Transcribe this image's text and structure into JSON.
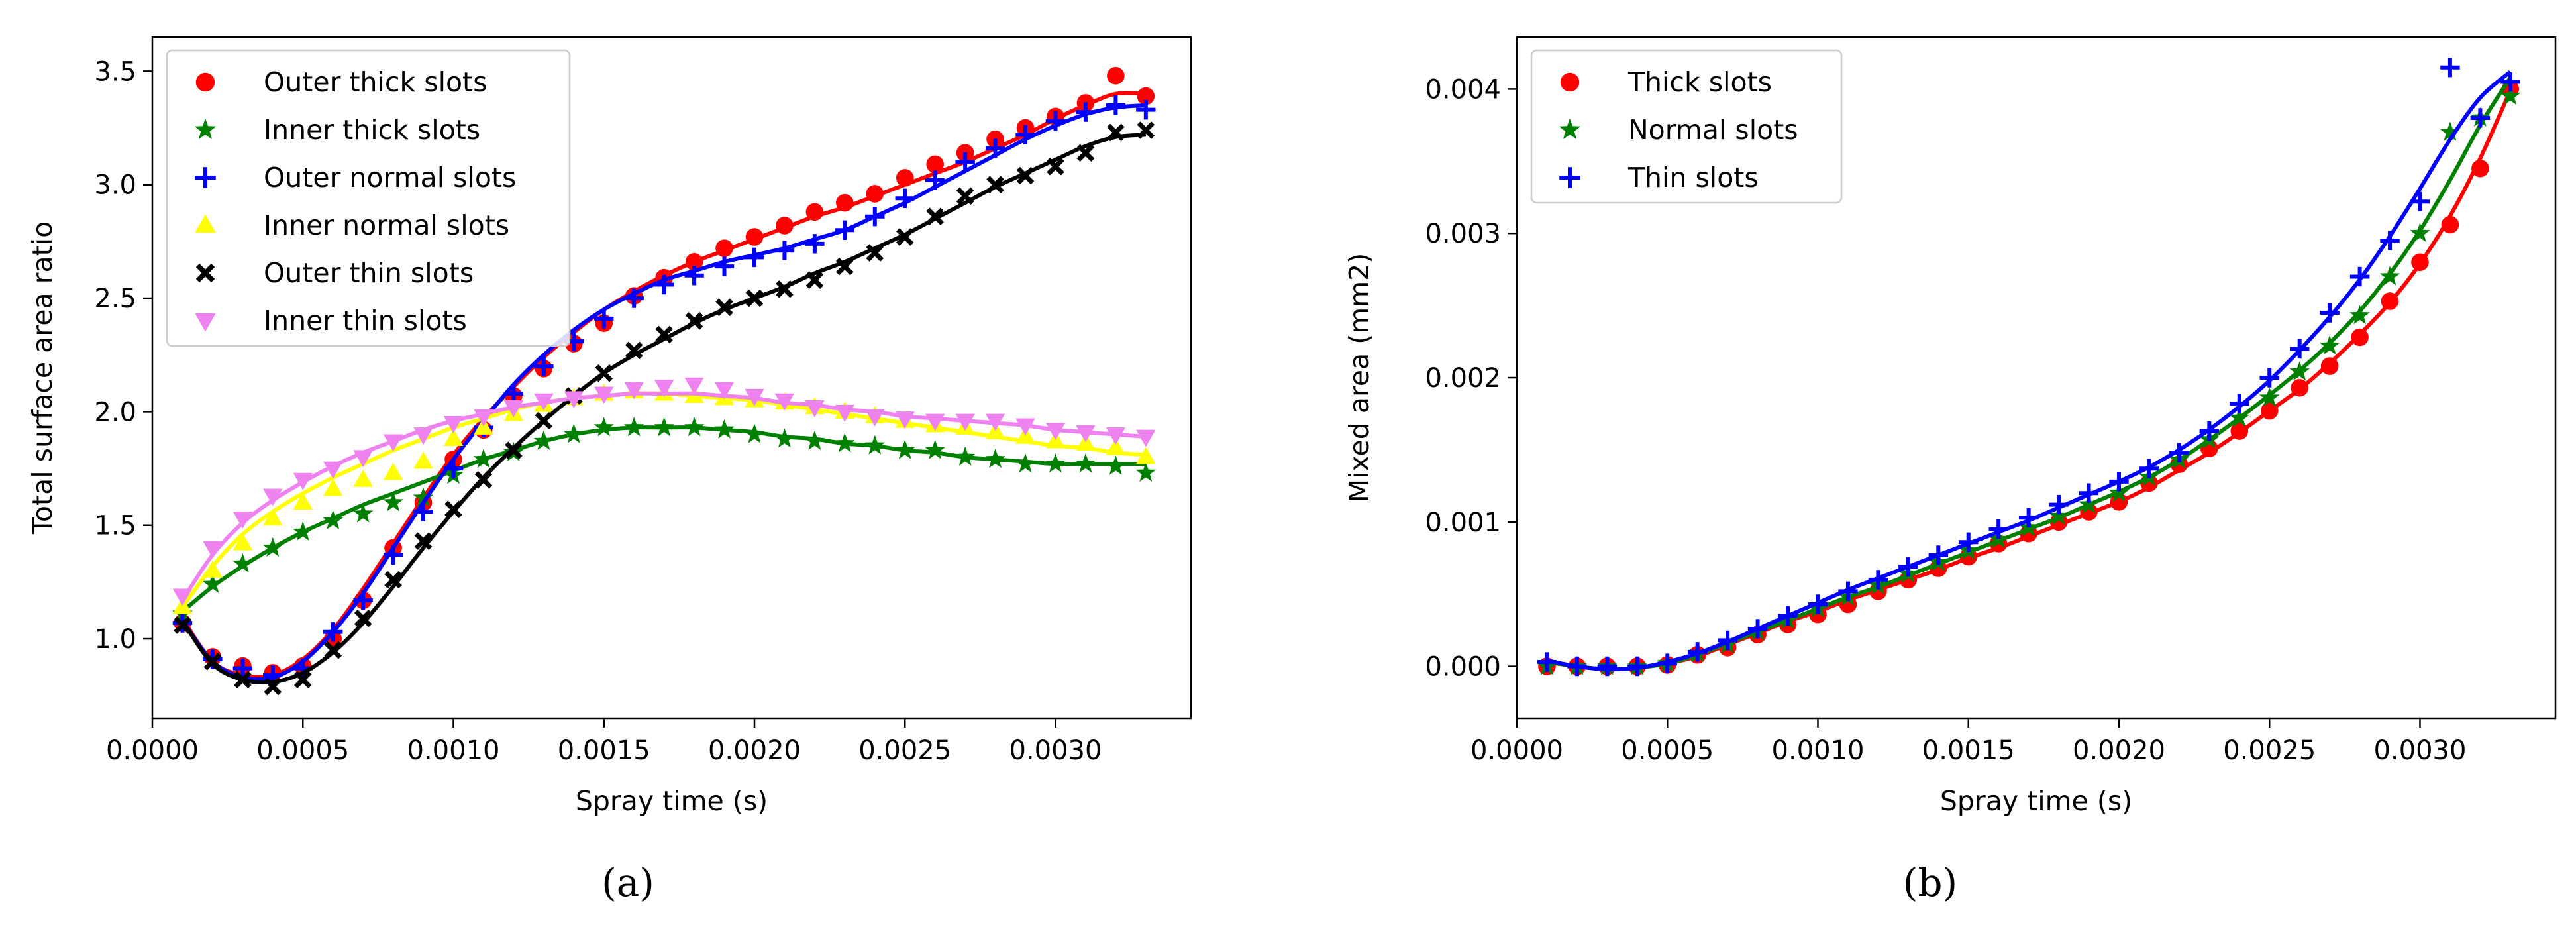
{
  "chart_data": [
    {
      "type": "scatter",
      "caption": "(a)",
      "xlabel": "Spray time (s)",
      "ylabel": "Total surface area ratio",
      "xlim": [
        0.0,
        0.00345
      ],
      "ylim": [
        0.65,
        3.65
      ],
      "xticks": [
        0.0,
        0.0005,
        0.001,
        0.0015,
        0.002,
        0.0025,
        0.003
      ],
      "xtick_labels": [
        "0.0000",
        "0.0005",
        "0.0010",
        "0.0015",
        "0.0020",
        "0.0025",
        "0.0030"
      ],
      "yticks": [
        1.0,
        1.5,
        2.0,
        2.5,
        3.0,
        3.5
      ],
      "ytick_labels": [
        "1.0",
        "1.5",
        "2.0",
        "2.5",
        "3.0",
        "3.5"
      ],
      "grid": false,
      "legend_position": "top-left",
      "x": [
        0.0001,
        0.0002,
        0.0003,
        0.0004,
        0.0005,
        0.0006,
        0.0007,
        0.0008,
        0.0009,
        0.001,
        0.0011,
        0.0012,
        0.0013,
        0.0014,
        0.0015,
        0.0016,
        0.0017,
        0.0018,
        0.0019,
        0.002,
        0.0021,
        0.0022,
        0.0023,
        0.0024,
        0.0025,
        0.0026,
        0.0027,
        0.0028,
        0.0029,
        0.003,
        0.0031,
        0.0032,
        0.0033
      ],
      "series": [
        {
          "name": "Outer thick slots",
          "color": "#ff0000",
          "marker": "circle",
          "values": [
            1.07,
            0.92,
            0.88,
            0.85,
            0.88,
            1.0,
            1.17,
            1.4,
            1.6,
            1.79,
            1.92,
            2.07,
            2.19,
            2.3,
            2.39,
            2.51,
            2.59,
            2.66,
            2.72,
            2.77,
            2.82,
            2.88,
            2.92,
            2.96,
            3.03,
            3.09,
            3.14,
            3.2,
            3.25,
            3.3,
            3.36,
            3.48,
            3.39
          ],
          "fit": [
            1.09,
            0.9,
            0.84,
            0.84,
            0.91,
            1.04,
            1.22,
            1.42,
            1.62,
            1.81,
            1.97,
            2.11,
            2.24,
            2.35,
            2.45,
            2.53,
            2.6,
            2.66,
            2.71,
            2.76,
            2.81,
            2.86,
            2.9,
            2.95,
            3.0,
            3.05,
            3.1,
            3.16,
            3.22,
            3.29,
            3.35,
            3.4,
            3.4
          ]
        },
        {
          "name": "Inner thick slots",
          "color": "#008000",
          "marker": "star",
          "values": [
            1.11,
            1.24,
            1.33,
            1.4,
            1.47,
            1.52,
            1.55,
            1.6,
            1.62,
            1.72,
            1.79,
            1.82,
            1.87,
            1.9,
            1.93,
            1.93,
            1.93,
            1.93,
            1.92,
            1.9,
            1.88,
            1.87,
            1.86,
            1.85,
            1.83,
            1.83,
            1.8,
            1.79,
            1.77,
            1.77,
            1.77,
            1.76,
            1.73
          ],
          "fit": [
            1.12,
            1.23,
            1.32,
            1.4,
            1.47,
            1.53,
            1.59,
            1.64,
            1.69,
            1.74,
            1.79,
            1.83,
            1.87,
            1.9,
            1.92,
            1.93,
            1.93,
            1.93,
            1.92,
            1.91,
            1.89,
            1.88,
            1.86,
            1.85,
            1.83,
            1.82,
            1.8,
            1.79,
            1.78,
            1.77,
            1.77,
            1.77,
            1.77
          ]
        },
        {
          "name": "Outer normal slots",
          "color": "#0000ff",
          "marker": "plus",
          "values": [
            1.07,
            0.91,
            0.87,
            0.84,
            0.87,
            1.03,
            1.17,
            1.37,
            1.56,
            1.75,
            1.93,
            2.08,
            2.2,
            2.31,
            2.41,
            2.5,
            2.56,
            2.6,
            2.64,
            2.68,
            2.71,
            2.74,
            2.8,
            2.86,
            2.94,
            3.02,
            3.1,
            3.16,
            3.22,
            3.28,
            3.32,
            3.35,
            3.33
          ],
          "fit": [
            1.08,
            0.9,
            0.83,
            0.83,
            0.9,
            1.03,
            1.2,
            1.4,
            1.6,
            1.79,
            1.96,
            2.12,
            2.25,
            2.36,
            2.45,
            2.52,
            2.58,
            2.62,
            2.66,
            2.69,
            2.72,
            2.76,
            2.8,
            2.86,
            2.92,
            2.99,
            3.06,
            3.13,
            3.2,
            3.26,
            3.31,
            3.34,
            3.35
          ]
        },
        {
          "name": "Inner normal slots",
          "color": "#ffff00",
          "marker": "triangle-up",
          "values": [
            1.14,
            1.3,
            1.42,
            1.53,
            1.6,
            1.66,
            1.7,
            1.73,
            1.78,
            1.88,
            1.93,
            1.99,
            2.03,
            2.06,
            2.08,
            2.09,
            2.08,
            2.07,
            2.06,
            2.05,
            2.04,
            2.02,
            2.0,
            1.98,
            1.96,
            1.94,
            1.93,
            1.91,
            1.89,
            1.87,
            1.86,
            1.84,
            1.8
          ],
          "fit": [
            1.14,
            1.32,
            1.46,
            1.56,
            1.64,
            1.71,
            1.77,
            1.83,
            1.88,
            1.93,
            1.97,
            2.01,
            2.04,
            2.06,
            2.07,
            2.08,
            2.08,
            2.07,
            2.06,
            2.05,
            2.03,
            2.01,
            1.99,
            1.97,
            1.95,
            1.93,
            1.91,
            1.89,
            1.87,
            1.85,
            1.84,
            1.82,
            1.81
          ]
        },
        {
          "name": "Outer thin slots",
          "color": "#000000",
          "marker": "x-filled",
          "values": [
            1.06,
            0.9,
            0.82,
            0.79,
            0.82,
            0.95,
            1.09,
            1.26,
            1.43,
            1.57,
            1.7,
            1.83,
            1.96,
            2.07,
            2.17,
            2.27,
            2.34,
            2.4,
            2.46,
            2.5,
            2.54,
            2.58,
            2.64,
            2.7,
            2.77,
            2.86,
            2.95,
            3.0,
            3.04,
            3.08,
            3.14,
            3.23,
            3.24
          ],
          "fit": [
            1.08,
            0.89,
            0.82,
            0.81,
            0.85,
            0.94,
            1.07,
            1.23,
            1.4,
            1.56,
            1.71,
            1.84,
            1.96,
            2.07,
            2.17,
            2.25,
            2.32,
            2.39,
            2.45,
            2.5,
            2.55,
            2.61,
            2.66,
            2.72,
            2.78,
            2.85,
            2.92,
            2.99,
            3.05,
            3.11,
            3.17,
            3.21,
            3.22
          ]
        },
        {
          "name": "Inner thin slots",
          "color": "#ee82ee",
          "marker": "triangle-down",
          "values": [
            1.19,
            1.4,
            1.53,
            1.63,
            1.7,
            1.75,
            1.8,
            1.87,
            1.9,
            1.95,
            1.98,
            2.02,
            2.05,
            2.06,
            2.08,
            2.1,
            2.11,
            2.12,
            2.1,
            2.07,
            2.05,
            2.02,
            2.0,
            1.98,
            1.97,
            1.96,
            1.96,
            1.96,
            1.94,
            1.92,
            1.91,
            1.9,
            1.89
          ],
          "fit": [
            1.17,
            1.37,
            1.51,
            1.61,
            1.69,
            1.76,
            1.82,
            1.87,
            1.92,
            1.96,
            1.99,
            2.02,
            2.04,
            2.06,
            2.07,
            2.08,
            2.08,
            2.08,
            2.07,
            2.06,
            2.04,
            2.03,
            2.01,
            2.0,
            1.98,
            1.97,
            1.96,
            1.95,
            1.94,
            1.92,
            1.91,
            1.9,
            1.89
          ]
        }
      ]
    },
    {
      "type": "scatter",
      "caption": "(b)",
      "xlabel": "Spray time (s)",
      "ylabel": "Mixed area (mm2)",
      "xlim": [
        0.0,
        0.00345
      ],
      "ylim": [
        -0.00036,
        0.00436
      ],
      "xticks": [
        0.0,
        0.0005,
        0.001,
        0.0015,
        0.002,
        0.0025,
        0.003
      ],
      "xtick_labels": [
        "0.0000",
        "0.0005",
        "0.0010",
        "0.0015",
        "0.0020",
        "0.0025",
        "0.0030"
      ],
      "yticks": [
        0.0,
        0.001,
        0.002,
        0.003,
        0.004
      ],
      "ytick_labels": [
        "0.000",
        "0.001",
        "0.002",
        "0.003",
        "0.004"
      ],
      "grid": false,
      "legend_position": "top-left",
      "x": [
        0.0001,
        0.0002,
        0.0003,
        0.0004,
        0.0005,
        0.0006,
        0.0007,
        0.0008,
        0.0009,
        0.001,
        0.0011,
        0.0012,
        0.0013,
        0.0014,
        0.0015,
        0.0016,
        0.0017,
        0.0018,
        0.0019,
        0.002,
        0.0021,
        0.0022,
        0.0023,
        0.0024,
        0.0025,
        0.0026,
        0.0027,
        0.0028,
        0.0029,
        0.003,
        0.0031,
        0.0032,
        0.0033
      ],
      "series": [
        {
          "name": "Thick slots",
          "color": "#ff0000",
          "marker": "circle",
          "values": [
            0.0,
            0.0,
            0.0,
            0.0,
            1e-05,
            8e-05,
            0.00013,
            0.00022,
            0.00029,
            0.00036,
            0.00043,
            0.00052,
            0.0006,
            0.00068,
            0.00076,
            0.00085,
            0.00092,
            0.001,
            0.00107,
            0.00114,
            0.00127,
            0.0014,
            0.00151,
            0.00163,
            0.00177,
            0.00193,
            0.00208,
            0.00228,
            0.00253,
            0.0028,
            0.00306,
            0.00345,
            0.004
          ],
          "fit": [
            3e-05,
            0.0,
            -2e-05,
            -1e-05,
            2e-05,
            7e-05,
            0.00015,
            0.00023,
            0.00031,
            0.00038,
            0.00046,
            0.00053,
            0.0006,
            0.00067,
            0.00075,
            0.00082,
            0.0009,
            0.00098,
            0.00106,
            0.00114,
            0.00124,
            0.00136,
            0.00148,
            0.00162,
            0.00177,
            0.00192,
            0.0021,
            0.0023,
            0.00252,
            0.00279,
            0.00312,
            0.00352,
            0.00399
          ]
        },
        {
          "name": "Normal slots",
          "color": "#008000",
          "marker": "star",
          "values": [
            0.0,
            0.0,
            0.0,
            0.0,
            2e-05,
            9e-05,
            0.00015,
            0.00024,
            0.00032,
            0.0004,
            0.00048,
            0.00056,
            0.00064,
            0.00072,
            0.0008,
            0.00088,
            0.00096,
            0.00104,
            0.00112,
            0.0012,
            0.00131,
            0.00143,
            0.00157,
            0.00172,
            0.00186,
            0.00204,
            0.00222,
            0.00243,
            0.0027,
            0.003,
            0.0037,
            0.0038,
            0.00395
          ],
          "fit": [
            3e-05,
            0.0,
            -2e-05,
            -1e-05,
            2e-05,
            8e-05,
            0.00016,
            0.00024,
            0.00032,
            0.0004,
            0.00048,
            0.00055,
            0.00063,
            0.00071,
            0.00079,
            0.00087,
            0.00095,
            0.00103,
            0.00112,
            0.00121,
            0.00131,
            0.00143,
            0.00157,
            0.00172,
            0.00188,
            0.00205,
            0.00224,
            0.00246,
            0.00272,
            0.00302,
            0.00337,
            0.00375,
            0.00408
          ]
        },
        {
          "name": "Thin slots",
          "color": "#0000ff",
          "marker": "plus",
          "values": [
            3e-05,
            0.0,
            0.0,
            0.0,
            2e-05,
            0.0001,
            0.00018,
            0.00026,
            0.00035,
            0.00043,
            0.00052,
            0.0006,
            0.00069,
            0.00077,
            0.00086,
            0.00095,
            0.00103,
            0.00112,
            0.0012,
            0.00128,
            0.00137,
            0.00148,
            0.00163,
            0.00182,
            0.002,
            0.0022,
            0.00245,
            0.0027,
            0.00295,
            0.00322,
            0.00415,
            0.0038,
            0.00405
          ],
          "fit": [
            4e-05,
            0.0,
            -2e-05,
            -1e-05,
            3e-05,
            9e-05,
            0.00017,
            0.00026,
            0.00035,
            0.00044,
            0.00053,
            0.00061,
            0.00069,
            0.00077,
            0.00085,
            0.00093,
            0.00101,
            0.0011,
            0.00119,
            0.00128,
            0.00138,
            0.0015,
            0.00164,
            0.0018,
            0.00198,
            0.00219,
            0.00242,
            0.00268,
            0.00298,
            0.00331,
            0.00365,
            0.00394,
            0.00412
          ]
        }
      ]
    }
  ]
}
